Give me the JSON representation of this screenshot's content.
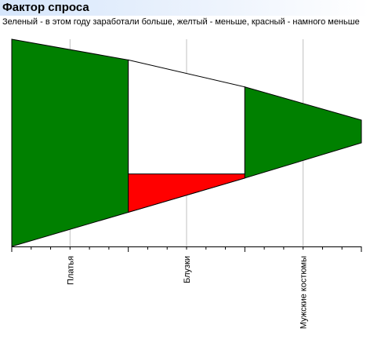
{
  "header": {
    "title": "Фактор спроса",
    "subtitle": "Зеленый - в этом году заработали больше, желтый - меньше, красный - намного меньше"
  },
  "colors": {
    "green": "#008000",
    "yellow": "#ffffff",
    "red": "#ff0000",
    "grid": "#c0c0c0",
    "axis": "#000000"
  },
  "chart_data": {
    "type": "area",
    "categories": [
      "Платья",
      "Блузки",
      "Мужские костюмы"
    ],
    "legend": "none",
    "grid": true,
    "x_range": [
      0,
      3
    ],
    "y_range": [
      0,
      1
    ],
    "envelope": {
      "x": [
        0,
        1,
        2,
        3
      ],
      "upper": [
        1.0,
        0.9,
        0.77,
        0.61
      ],
      "lower": [
        0.0,
        0.165,
        0.33,
        0.5
      ]
    },
    "segments": [
      {
        "category": "Платья",
        "x_from": 0,
        "x_to": 1,
        "status": "green"
      },
      {
        "category": "Блузки",
        "x_from": 1,
        "x_to": 2,
        "status": "yellow",
        "inner_status": "red",
        "inner_top": [
          0.35,
          0.35
        ]
      },
      {
        "category": "Мужские костюмы",
        "x_from": 2,
        "x_to": 3,
        "status": "green"
      }
    ]
  }
}
